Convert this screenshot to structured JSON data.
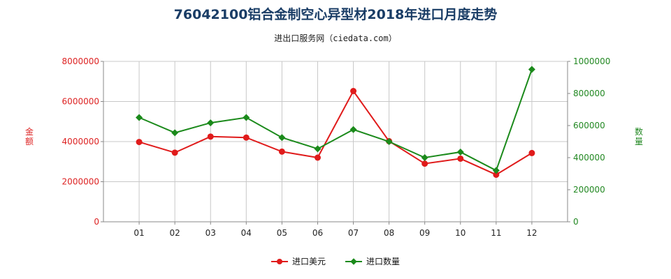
{
  "header": {
    "title": "76042100铝合金制空心异型材2018年进口月度走势",
    "subtitle": "进出口服务网（ciedata.com）"
  },
  "colors": {
    "amount": "#e01b1b",
    "quantity": "#1b8a1b",
    "left_axis": "#dd2222",
    "right_axis": "#228822",
    "grid": "#c8c8c8"
  },
  "chart_data": {
    "type": "line",
    "categories": [
      "01",
      "02",
      "03",
      "04",
      "05",
      "06",
      "07",
      "08",
      "09",
      "10",
      "11",
      "12"
    ],
    "y_left": {
      "label": "金额",
      "lim": [
        0,
        8000000
      ],
      "ticks": [
        "0",
        "2000000",
        "4000000",
        "6000000",
        "8000000"
      ]
    },
    "y_right": {
      "label": "数量",
      "lim": [
        0,
        1000000
      ],
      "ticks": [
        "0",
        "200000",
        "400000",
        "600000",
        "800000",
        "1000000"
      ]
    },
    "series": [
      {
        "name": "进口美元",
        "axis": "left",
        "color": "#e01b1b",
        "marker": "circle",
        "values": [
          3980000,
          3450000,
          4250000,
          4200000,
          3500000,
          3200000,
          6520000,
          4020000,
          2900000,
          3150000,
          2350000,
          3430000
        ]
      },
      {
        "name": "进口数量",
        "axis": "right",
        "color": "#1b8a1b",
        "marker": "diamond",
        "values": [
          650000,
          555000,
          617000,
          650000,
          525000,
          455000,
          575000,
          500000,
          400000,
          435000,
          320000,
          950000
        ]
      }
    ],
    "grid": true,
    "legend": "bottom-center"
  }
}
